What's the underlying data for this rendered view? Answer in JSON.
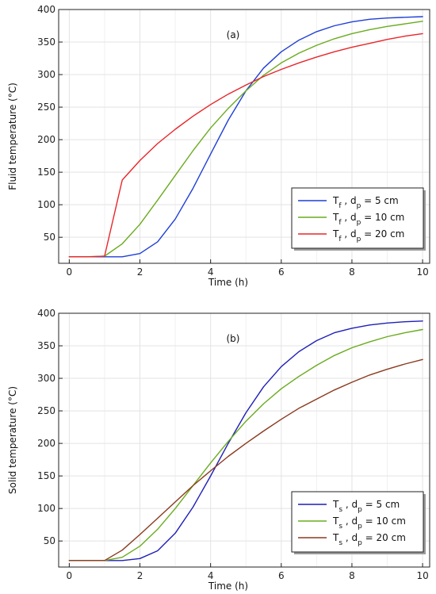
{
  "chart_data": [
    {
      "type": "line",
      "title": "",
      "panel_label": "(a)",
      "xlabel": "Time (h)",
      "ylabel": "Fluid temperature (°C)",
      "xlim": [
        -0.3,
        10.2
      ],
      "ylim": [
        10,
        400
      ],
      "xticks": [
        0,
        2,
        4,
        6,
        8,
        10
      ],
      "yticks": [
        50,
        100,
        150,
        200,
        250,
        300,
        350,
        400
      ],
      "grid": true,
      "legend_position": "bottom-right",
      "series": [
        {
          "name": "Tf , dp = 5 cm",
          "legend": {
            "main": "T",
            "sub": "f",
            "mid": " , d",
            "sub2": "p",
            "tail": " = 5 cm"
          },
          "color": "#1f3fd6",
          "x": [
            0,
            0.5,
            1,
            1.5,
            2,
            2.5,
            3,
            3.5,
            4,
            4.5,
            5,
            5.5,
            6,
            6.5,
            7,
            7.5,
            8,
            8.5,
            9,
            9.5,
            10
          ],
          "y": [
            20,
            20,
            20,
            20,
            25,
            43,
            78,
            125,
            178,
            230,
            275,
            310,
            335,
            353,
            366,
            375,
            381,
            385,
            387,
            388,
            389
          ]
        },
        {
          "name": "Tf , dp = 10 cm",
          "legend": {
            "main": "T",
            "sub": "f",
            "mid": " , d",
            "sub2": "p",
            "tail": " = 10 cm"
          },
          "color": "#6aab1e",
          "x": [
            0,
            0.5,
            1,
            1.5,
            2,
            2.5,
            3,
            3.5,
            4,
            4.5,
            5,
            5.5,
            6,
            6.5,
            7,
            7.5,
            8,
            8.5,
            9,
            9.5,
            10
          ],
          "y": [
            20,
            20,
            21,
            40,
            70,
            107,
            145,
            183,
            218,
            248,
            275,
            299,
            318,
            333,
            345,
            355,
            363,
            369,
            374,
            378,
            382
          ]
        },
        {
          "name": "Tf , dp = 20 cm",
          "legend": {
            "main": "T",
            "sub": "f",
            "mid": " , d",
            "sub2": "p",
            "tail": " = 20 cm"
          },
          "color": "#e8262a",
          "x": [
            0,
            0.5,
            1,
            1.5,
            2,
            2.5,
            3,
            3.5,
            4,
            4.5,
            5,
            5.5,
            6,
            6.5,
            7,
            7.5,
            8,
            8.5,
            9,
            9.5,
            10
          ],
          "y": [
            20,
            20,
            21,
            138,
            168,
            194,
            216,
            236,
            254,
            270,
            284,
            297,
            308,
            318,
            327,
            335,
            342,
            348,
            354,
            359,
            363
          ]
        }
      ]
    },
    {
      "type": "line",
      "title": "",
      "panel_label": "(b)",
      "xlabel": "Time (h)",
      "ylabel": "Solid temperature (°C)",
      "xlim": [
        -0.3,
        10.2
      ],
      "ylim": [
        10,
        400
      ],
      "xticks": [
        0,
        2,
        4,
        6,
        8,
        10
      ],
      "yticks": [
        50,
        100,
        150,
        200,
        250,
        300,
        350,
        400
      ],
      "grid": true,
      "legend_position": "bottom-right",
      "series": [
        {
          "name": "Ts , dp = 5 cm",
          "legend": {
            "main": "T",
            "sub": "s",
            "mid": " , d",
            "sub2": "p",
            "tail": " = 5 cm"
          },
          "color": "#1f1fb8",
          "x": [
            0,
            0.5,
            1,
            1.5,
            2,
            2.5,
            3,
            3.5,
            4,
            4.5,
            5,
            5.5,
            6,
            6.5,
            7,
            7.5,
            8,
            8.5,
            9,
            9.5,
            10
          ],
          "y": [
            20,
            20,
            20,
            20,
            23,
            35,
            62,
            102,
            150,
            200,
            247,
            287,
            318,
            341,
            358,
            370,
            377,
            382,
            385,
            387,
            388
          ]
        },
        {
          "name": "Ts , dp = 10 cm",
          "legend": {
            "main": "T",
            "sub": "s",
            "mid": " , d",
            "sub2": "p",
            "tail": " = 10 cm"
          },
          "color": "#6aab1e",
          "x": [
            0,
            0.5,
            1,
            1.5,
            2,
            2.5,
            3,
            3.5,
            4,
            4.5,
            5,
            5.5,
            6,
            6.5,
            7,
            7.5,
            8,
            8.5,
            9,
            9.5,
            10
          ],
          "y": [
            20,
            20,
            20,
            25,
            42,
            68,
            100,
            135,
            170,
            203,
            234,
            261,
            284,
            303,
            320,
            335,
            347,
            356,
            364,
            370,
            375
          ]
        },
        {
          "name": "Ts , dp = 20 cm",
          "legend": {
            "main": "T",
            "sub": "s",
            "mid": " , d",
            "sub2": "p",
            "tail": " = 20 cm"
          },
          "color": "#8b3a1e",
          "x": [
            0,
            0.5,
            1,
            1.5,
            2,
            2.5,
            3,
            3.5,
            4,
            4.5,
            5,
            5.5,
            6,
            6.5,
            7,
            7.5,
            8,
            8.5,
            9,
            9.5,
            10
          ],
          "y": [
            20,
            20,
            20,
            36,
            60,
            85,
            110,
            135,
            158,
            180,
            200,
            219,
            237,
            254,
            268,
            282,
            294,
            305,
            314,
            322,
            329
          ]
        }
      ]
    }
  ]
}
